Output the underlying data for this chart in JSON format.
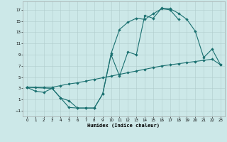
{
  "xlabel": "Humidex (Indice chaleur)",
  "background_color": "#cce8e8",
  "grid_color": "#b0cccc",
  "line_color": "#1a7070",
  "xlim": [
    -0.5,
    23.5
  ],
  "ylim": [
    -2.0,
    18.5
  ],
  "xticks": [
    0,
    1,
    2,
    3,
    4,
    5,
    6,
    7,
    8,
    9,
    10,
    11,
    12,
    13,
    14,
    15,
    16,
    17,
    18,
    19,
    20,
    21,
    22,
    23
  ],
  "yticks": [
    -1,
    1,
    3,
    5,
    7,
    9,
    11,
    13,
    15,
    17
  ],
  "line1_x": [
    0,
    1,
    2,
    3,
    4,
    5,
    6,
    7,
    8,
    9,
    10,
    11,
    12,
    13,
    14,
    15,
    16,
    17,
    18,
    19,
    20,
    21,
    22,
    23
  ],
  "line1_y": [
    3.2,
    3.2,
    3.2,
    3.2,
    3.5,
    3.8,
    4.0,
    4.3,
    4.6,
    4.9,
    5.2,
    5.5,
    5.8,
    6.1,
    6.4,
    6.7,
    7.0,
    7.2,
    7.4,
    7.6,
    7.8,
    8.0,
    8.2,
    7.2
  ],
  "line2_x": [
    0,
    1,
    2,
    3,
    4,
    5,
    6,
    7,
    8,
    9,
    10,
    11,
    12,
    13,
    14,
    15,
    16,
    17,
    18
  ],
  "line2_y": [
    3.2,
    2.5,
    2.3,
    3.0,
    1.3,
    -0.4,
    -0.5,
    -0.5,
    -0.5,
    2.0,
    9.2,
    13.5,
    14.8,
    15.5,
    15.3,
    16.3,
    17.2,
    17.0,
    15.3
  ],
  "line3_x": [
    0,
    3,
    4,
    5,
    6,
    7,
    8,
    9,
    10,
    11,
    12,
    13,
    14,
    15,
    16,
    17,
    18,
    19,
    20,
    21,
    22,
    23
  ],
  "line3_y": [
    3.2,
    3.0,
    1.3,
    0.8,
    -0.5,
    -0.5,
    -0.5,
    2.0,
    9.0,
    5.2,
    9.5,
    9.0,
    16.0,
    15.5,
    17.3,
    17.2,
    16.4,
    15.3,
    13.2,
    8.5,
    10.0,
    7.2
  ]
}
